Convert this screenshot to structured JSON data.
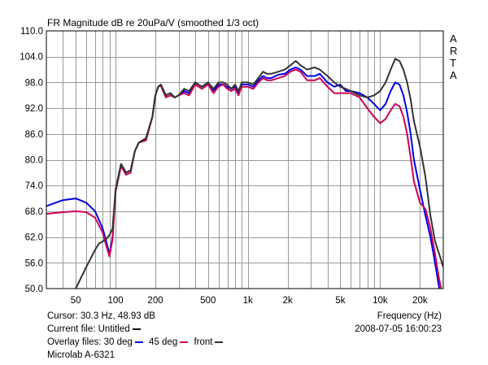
{
  "chart_data": {
    "type": "line",
    "title": "FR Magnitude dB re 20uPa/V (smoothed 1/3 oct)",
    "brand_letters": [
      "A",
      "R",
      "T",
      "A"
    ],
    "xscale": "log",
    "xlim": [
      30,
      30000
    ],
    "ylim": [
      50,
      110
    ],
    "grid": true,
    "ytick_labels": [
      "110.0",
      "104.0",
      "98.0",
      "92.0",
      "86.0",
      "80.0",
      "74.0",
      "68.0",
      "62.0",
      "56.0",
      "50.0"
    ],
    "ytick_values": [
      110,
      104,
      98,
      92,
      86,
      80,
      74,
      68,
      62,
      56,
      50
    ],
    "xtick_labels": [
      "50",
      "100",
      "200",
      "500",
      "1k",
      "2k",
      "5k",
      "10k",
      "20k"
    ],
    "xtick_values": [
      50,
      100,
      200,
      500,
      1000,
      2000,
      5000,
      10000,
      20000
    ],
    "xlabel": "Frequency (Hz)",
    "series": [
      {
        "name": "30 deg",
        "color": "#0000ee",
        "x": [
          30,
          40,
          50,
          60,
          70,
          80,
          85,
          90,
          95,
          100,
          110,
          120,
          130,
          140,
          150,
          170,
          190,
          200,
          210,
          220,
          240,
          260,
          280,
          300,
          330,
          360,
          400,
          450,
          500,
          550,
          600,
          650,
          700,
          750,
          800,
          850,
          900,
          1000,
          1100,
          1200,
          1300,
          1400,
          1500,
          1700,
          1900,
          2100,
          2300,
          2500,
          2800,
          3200,
          3500,
          4000,
          4500,
          5000,
          5500,
          6000,
          7000,
          8000,
          9000,
          10000,
          11000,
          12000,
          13000,
          14000,
          15000,
          16000,
          17000,
          18000,
          20000,
          22000,
          24000,
          26000,
          28000,
          30000
        ],
        "y": [
          69.2,
          70.6,
          71.0,
          70.0,
          68.0,
          64.0,
          61.0,
          58.0,
          62.0,
          73.0,
          79.0,
          77.0,
          77.5,
          82.0,
          84.0,
          85.0,
          90.0,
          95.0,
          97.0,
          97.5,
          95.0,
          95.5,
          94.5,
          95.0,
          96.0,
          95.5,
          98.0,
          97.0,
          98.0,
          96.0,
          97.5,
          97.5,
          97.0,
          96.5,
          97.0,
          95.5,
          97.5,
          97.5,
          97.0,
          98.5,
          99.5,
          99.0,
          99.0,
          99.8,
          100.0,
          101.0,
          101.5,
          101.0,
          99.5,
          99.5,
          100.0,
          98.0,
          97.0,
          97.5,
          96.0,
          96.0,
          95.5,
          94.5,
          93.0,
          91.5,
          93.0,
          96.0,
          98.0,
          97.5,
          95.0,
          91.0,
          86.0,
          80.0,
          73.0,
          67.0,
          62.0,
          56.0,
          50.0,
          46.0
        ]
      },
      {
        "name": "45 deg",
        "color": "#cc0055",
        "x": [
          30,
          40,
          50,
          60,
          70,
          80,
          85,
          90,
          95,
          100,
          110,
          120,
          130,
          140,
          150,
          170,
          190,
          200,
          210,
          220,
          240,
          260,
          280,
          300,
          330,
          360,
          400,
          450,
          500,
          550,
          600,
          650,
          700,
          750,
          800,
          850,
          900,
          1000,
          1100,
          1200,
          1300,
          1400,
          1500,
          1700,
          1900,
          2100,
          2300,
          2500,
          2800,
          3200,
          3500,
          4000,
          4500,
          5000,
          5500,
          6000,
          7000,
          8000,
          9000,
          10000,
          11000,
          12000,
          13000,
          14000,
          15000,
          16000,
          17000,
          18000,
          20000,
          22000,
          24000,
          26000,
          28000,
          30000
        ],
        "y": [
          67.4,
          67.8,
          68.0,
          67.8,
          66.5,
          63.0,
          60.0,
          57.5,
          61.5,
          72.5,
          78.5,
          76.5,
          77.0,
          82.0,
          84.0,
          84.5,
          90.0,
          95.0,
          97.0,
          97.2,
          94.5,
          95.0,
          94.5,
          95.0,
          95.5,
          95.0,
          97.5,
          96.5,
          97.5,
          95.5,
          97.0,
          97.5,
          96.5,
          96.0,
          96.5,
          95.0,
          97.0,
          97.0,
          96.5,
          98.0,
          99.0,
          98.5,
          98.5,
          99.0,
          99.5,
          100.5,
          101.0,
          100.5,
          98.5,
          98.5,
          99.0,
          97.0,
          95.5,
          95.5,
          95.5,
          95.5,
          94.5,
          92.0,
          90.0,
          88.5,
          89.5,
          91.5,
          93.0,
          92.5,
          90.0,
          86.0,
          80.5,
          75.0,
          70.0,
          68.5,
          64.0,
          58.0,
          52.0,
          48.0
        ]
      },
      {
        "name": "front",
        "color": "#333333",
        "x": [
          30,
          50,
          60,
          70,
          75,
          80,
          85,
          90,
          95,
          100,
          110,
          120,
          130,
          140,
          150,
          170,
          190,
          200,
          210,
          220,
          240,
          260,
          280,
          300,
          330,
          360,
          400,
          450,
          500,
          550,
          600,
          650,
          700,
          750,
          800,
          850,
          900,
          1000,
          1100,
          1200,
          1300,
          1400,
          1500,
          1700,
          1900,
          2100,
          2300,
          2500,
          2800,
          3200,
          3500,
          4000,
          4500,
          5000,
          5500,
          6000,
          7000,
          8000,
          9000,
          10000,
          11000,
          12000,
          13000,
          14000,
          15000,
          16000,
          17000,
          18000,
          20000,
          22000,
          24000,
          26000,
          28000,
          30000
        ],
        "y": [
          40.0,
          50.0,
          55.0,
          59.0,
          60.5,
          61.0,
          61.5,
          62.5,
          64.0,
          73.0,
          79.0,
          77.0,
          77.5,
          82.0,
          84.0,
          85.0,
          90.0,
          95.0,
          97.0,
          97.5,
          95.0,
          95.5,
          94.5,
          95.0,
          96.5,
          96.0,
          98.0,
          97.0,
          98.0,
          96.5,
          98.0,
          98.0,
          97.5,
          96.5,
          97.5,
          96.0,
          98.0,
          98.0,
          97.5,
          99.0,
          100.5,
          100.0,
          100.0,
          100.5,
          101.0,
          102.0,
          103.0,
          102.0,
          101.0,
          101.5,
          101.0,
          99.5,
          98.0,
          97.0,
          96.5,
          96.0,
          95.0,
          94.5,
          95.0,
          96.0,
          98.0,
          101.0,
          103.5,
          103.0,
          101.0,
          98.0,
          94.0,
          89.0,
          83.0,
          76.0,
          67.0,
          61.0,
          58.0,
          55.0
        ]
      }
    ]
  },
  "info": {
    "cursor": "Cursor: 30.3 Hz, 48.93 dB",
    "current_file": "Current file: Untitled",
    "overlay_label": "Overlay files: 30 deg",
    "overlay_2": "45 deg",
    "overlay_3": "front",
    "datetime": "2008-07-05  16:00:23",
    "measurement_name": "Microlab A-6321",
    "current_file_color": "#000000"
  }
}
